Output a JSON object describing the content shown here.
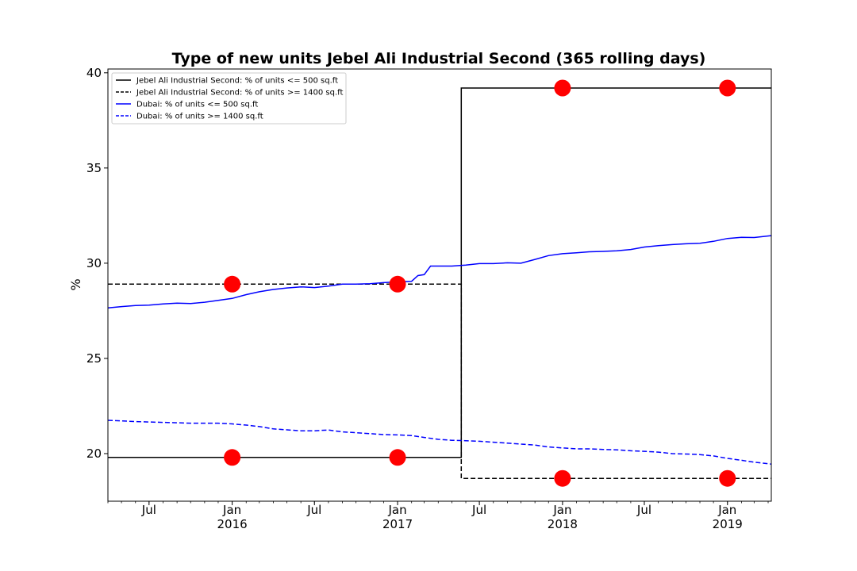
{
  "chart_data": {
    "type": "line",
    "title": "Type of new units Jebel Ali Industrial Second (365 rolling days)",
    "xlabel": "",
    "ylabel": "%",
    "xlim": [
      "2015-04-01",
      "2019-04-08"
    ],
    "ylim": [
      17.5,
      40.2
    ],
    "y_ticks": [
      20,
      25,
      30,
      35,
      40
    ],
    "x_ticks": [
      {
        "date": "2015-07-01",
        "label": "Jul"
      },
      {
        "date": "2016-01-01",
        "label": "Jan",
        "year": "2016"
      },
      {
        "date": "2016-07-01",
        "label": "Jul"
      },
      {
        "date": "2017-01-01",
        "label": "Jan",
        "year": "2017"
      },
      {
        "date": "2017-07-01",
        "label": "Jul"
      },
      {
        "date": "2018-01-01",
        "label": "Jan",
        "year": "2018"
      },
      {
        "date": "2018-07-01",
        "label": "Jul"
      },
      {
        "date": "2019-01-01",
        "label": "Jan",
        "year": "2019"
      }
    ],
    "grid": false,
    "legend_position": "top-left",
    "series": [
      {
        "name": "Jebel Ali Industrial Second: % of units <= 500 sq.ft",
        "color": "#000000",
        "dash": "solid",
        "step": true,
        "x": [
          "2015-04-01",
          "2017-05-22",
          "2017-05-22",
          "2019-04-08"
        ],
        "y": [
          19.8,
          19.8,
          39.2,
          39.2
        ]
      },
      {
        "name": "Jebel Ali Industrial Second: % of units >= 1400 sq.ft",
        "color": "#000000",
        "dash": "dashed",
        "step": true,
        "x": [
          "2015-04-01",
          "2017-05-22",
          "2017-05-22",
          "2019-04-08"
        ],
        "y": [
          28.9,
          28.9,
          18.7,
          18.7
        ]
      },
      {
        "name": "Dubai: % of units <= 500 sq.ft",
        "color": "#0000ff",
        "dash": "solid",
        "step": false,
        "x": [
          "2015-04-01",
          "2015-05-01",
          "2015-06-01",
          "2015-07-01",
          "2015-08-01",
          "2015-09-01",
          "2015-10-01",
          "2015-11-01",
          "2015-12-01",
          "2016-01-01",
          "2016-02-01",
          "2016-03-01",
          "2016-04-01",
          "2016-05-01",
          "2016-06-01",
          "2016-07-01",
          "2016-08-01",
          "2016-09-01",
          "2016-10-01",
          "2016-11-01",
          "2016-12-01",
          "2017-01-01",
          "2017-02-01",
          "2017-02-15",
          "2017-03-01",
          "2017-03-15",
          "2017-04-01",
          "2017-05-01",
          "2017-06-01",
          "2017-07-01",
          "2017-08-01",
          "2017-09-01",
          "2017-10-01",
          "2017-11-01",
          "2017-12-01",
          "2018-01-01",
          "2018-02-01",
          "2018-03-01",
          "2018-04-01",
          "2018-05-01",
          "2018-06-01",
          "2018-07-01",
          "2018-08-01",
          "2018-09-01",
          "2018-10-01",
          "2018-11-01",
          "2018-12-01",
          "2019-01-01",
          "2019-02-01",
          "2019-03-01",
          "2019-04-08"
        ],
        "y": [
          27.65,
          27.72,
          27.78,
          27.8,
          27.86,
          27.9,
          27.88,
          27.95,
          28.05,
          28.15,
          28.35,
          28.5,
          28.62,
          28.7,
          28.76,
          28.72,
          28.8,
          28.9,
          28.9,
          28.92,
          28.98,
          29.02,
          29.05,
          29.35,
          29.4,
          29.85,
          29.85,
          29.85,
          29.9,
          29.98,
          29.98,
          30.02,
          30.0,
          30.2,
          30.4,
          30.5,
          30.55,
          30.6,
          30.62,
          30.65,
          30.72,
          30.85,
          30.92,
          30.98,
          31.02,
          31.05,
          31.15,
          31.3,
          31.36,
          31.35,
          31.45
        ]
      },
      {
        "name": "Dubai: % of units >= 1400 sq.ft",
        "color": "#0000ff",
        "dash": "dashed",
        "step": false,
        "x": [
          "2015-04-01",
          "2015-05-01",
          "2015-06-01",
          "2015-07-01",
          "2015-08-01",
          "2015-09-01",
          "2015-10-01",
          "2015-11-01",
          "2015-12-01",
          "2016-01-01",
          "2016-02-01",
          "2016-03-01",
          "2016-04-01",
          "2016-05-01",
          "2016-06-01",
          "2016-07-01",
          "2016-08-01",
          "2016-09-01",
          "2016-10-01",
          "2016-11-01",
          "2016-12-01",
          "2017-01-01",
          "2017-02-01",
          "2017-03-01",
          "2017-04-01",
          "2017-05-01",
          "2017-06-01",
          "2017-07-01",
          "2017-08-01",
          "2017-09-01",
          "2017-10-01",
          "2017-11-01",
          "2017-12-01",
          "2018-01-01",
          "2018-02-01",
          "2018-03-01",
          "2018-04-01",
          "2018-05-01",
          "2018-06-01",
          "2018-07-01",
          "2018-08-01",
          "2018-09-01",
          "2018-10-01",
          "2018-11-01",
          "2018-12-01",
          "2019-01-01",
          "2019-02-01",
          "2019-03-01",
          "2019-04-08"
        ],
        "y": [
          21.75,
          21.72,
          21.68,
          21.66,
          21.64,
          21.62,
          21.6,
          21.6,
          21.6,
          21.56,
          21.5,
          21.42,
          21.3,
          21.25,
          21.2,
          21.2,
          21.24,
          21.14,
          21.1,
          21.05,
          21.0,
          20.98,
          20.95,
          20.85,
          20.75,
          20.7,
          20.68,
          20.65,
          20.6,
          20.55,
          20.5,
          20.45,
          20.35,
          20.3,
          20.25,
          20.25,
          20.22,
          20.2,
          20.15,
          20.12,
          20.08,
          20.0,
          19.98,
          19.95,
          19.88,
          19.75,
          19.65,
          19.55,
          19.45
        ]
      }
    ],
    "markers": {
      "color": "#ff0000",
      "x": [
        "2016-01-01",
        "2016-01-01",
        "2017-01-01",
        "2017-01-01",
        "2018-01-01",
        "2018-01-01",
        "2019-01-01",
        "2019-01-01"
      ],
      "y": [
        28.9,
        19.8,
        28.9,
        19.8,
        39.2,
        18.7,
        39.2,
        18.7
      ]
    }
  }
}
